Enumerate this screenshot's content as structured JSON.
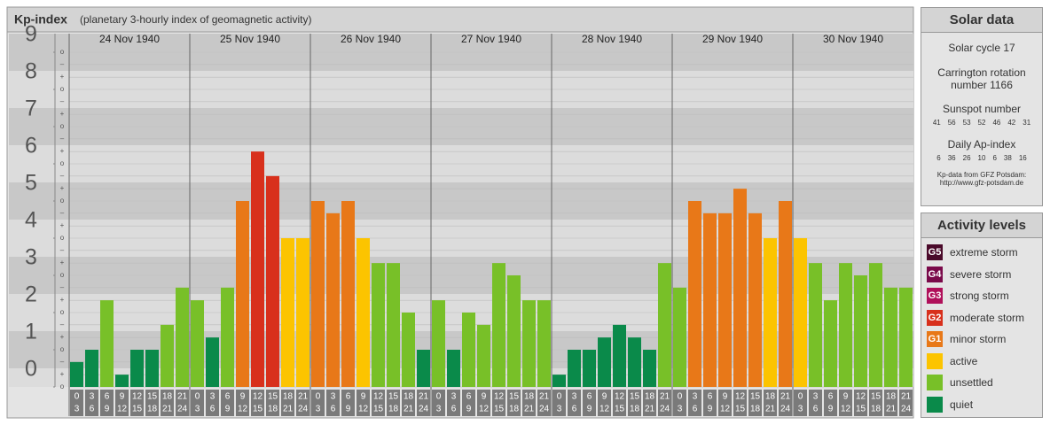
{
  "chart_data": {
    "type": "bar",
    "title": "Kp-index",
    "subtitle": "(planetary 3-hourly index of geomagnetic activity)",
    "ylim": [
      0,
      9.5
    ],
    "yticks": [
      0,
      1,
      2,
      3,
      4,
      5,
      6,
      7,
      8,
      9
    ],
    "yminor": [
      {
        "value": 0,
        "label": "o"
      },
      {
        "value": 0.33,
        "label": "+"
      },
      {
        "value": 0.67,
        "label": "–"
      },
      {
        "value": 1,
        "label": "o"
      },
      {
        "value": 1.33,
        "label": "+"
      },
      {
        "value": 1.67,
        "label": "–"
      },
      {
        "value": 2,
        "label": "o"
      },
      {
        "value": 2.33,
        "label": "+"
      },
      {
        "value": 2.67,
        "label": "–"
      },
      {
        "value": 3,
        "label": "o"
      },
      {
        "value": 3.33,
        "label": "+"
      },
      {
        "value": 3.67,
        "label": "–"
      },
      {
        "value": 4,
        "label": "o"
      },
      {
        "value": 4.33,
        "label": "+"
      },
      {
        "value": 4.67,
        "label": "–"
      },
      {
        "value": 5,
        "label": "o"
      },
      {
        "value": 5.33,
        "label": "+"
      },
      {
        "value": 5.67,
        "label": "–"
      },
      {
        "value": 6,
        "label": "o"
      },
      {
        "value": 6.33,
        "label": "+"
      },
      {
        "value": 6.67,
        "label": "–"
      },
      {
        "value": 7,
        "label": "o"
      },
      {
        "value": 7.33,
        "label": "+"
      },
      {
        "value": 7.67,
        "label": "–"
      },
      {
        "value": 8,
        "label": "o"
      },
      {
        "value": 8.33,
        "label": "+"
      },
      {
        "value": 8.67,
        "label": "–"
      },
      {
        "value": 9,
        "label": "o"
      }
    ],
    "hour_labels": [
      [
        "0",
        "3"
      ],
      [
        "3",
        "6"
      ],
      [
        "6",
        "9"
      ],
      [
        "9",
        "12"
      ],
      [
        "12",
        "15"
      ],
      [
        "15",
        "18"
      ],
      [
        "18",
        "21"
      ],
      [
        "21",
        "24"
      ]
    ],
    "series": [
      {
        "name": "24 Nov 1940",
        "values": [
          0.67,
          1,
          2.33,
          0.33,
          1,
          1,
          1.67,
          2.67
        ],
        "colors": [
          "#0a8a4a",
          "#0a8a4a",
          "#78c028",
          "#0a8a4a",
          "#0a8a4a",
          "#0a8a4a",
          "#78c028",
          "#78c028"
        ]
      },
      {
        "name": "25 Nov 1940",
        "values": [
          2.33,
          1.33,
          2.67,
          5,
          6.33,
          5.67,
          4,
          4
        ],
        "colors": [
          "#78c028",
          "#0a8a4a",
          "#78c028",
          "#e87818",
          "#d8301c",
          "#d8301c",
          "#fcc400",
          "#fcc400"
        ]
      },
      {
        "name": "26 Nov 1940",
        "values": [
          5,
          4.67,
          5,
          4,
          3.33,
          3.33,
          2,
          1
        ],
        "colors": [
          "#e87818",
          "#e87818",
          "#e87818",
          "#fcc400",
          "#78c028",
          "#78c028",
          "#78c028",
          "#0a8a4a"
        ]
      },
      {
        "name": "27 Nov 1940",
        "values": [
          2.33,
          1,
          2,
          1.67,
          3.33,
          3,
          2.33,
          2.33
        ],
        "colors": [
          "#78c028",
          "#0a8a4a",
          "#78c028",
          "#78c028",
          "#78c028",
          "#78c028",
          "#78c028",
          "#78c028"
        ]
      },
      {
        "name": "28 Nov 1940",
        "values": [
          0.33,
          1,
          1,
          1.33,
          1.67,
          1.33,
          1,
          3.33
        ],
        "colors": [
          "#0a8a4a",
          "#0a8a4a",
          "#0a8a4a",
          "#0a8a4a",
          "#0a8a4a",
          "#0a8a4a",
          "#0a8a4a",
          "#78c028"
        ]
      },
      {
        "name": "29 Nov 1940",
        "values": [
          2.67,
          5,
          4.67,
          4.67,
          5.33,
          4.67,
          4,
          5
        ],
        "colors": [
          "#78c028",
          "#e87818",
          "#e87818",
          "#e87818",
          "#e87818",
          "#e87818",
          "#fcc400",
          "#e87818"
        ]
      },
      {
        "name": "30 Nov 1940",
        "values": [
          4,
          3.33,
          2.33,
          3.33,
          3,
          3.33,
          2.67,
          2.67
        ],
        "colors": [
          "#fcc400",
          "#78c028",
          "#78c028",
          "#78c028",
          "#78c028",
          "#78c028",
          "#78c028",
          "#78c028"
        ]
      }
    ]
  },
  "solar_data": {
    "title": "Solar data",
    "solar_cycle": "Solar cycle 17",
    "carrington": [
      "Carrington rotation",
      "number 1166"
    ],
    "sunspot_title": "Sunspot number",
    "sunspot_numbers": [
      41,
      56,
      53,
      52,
      46,
      42,
      31
    ],
    "ap_title": "Daily Ap-index",
    "ap_index": [
      6,
      36,
      26,
      10,
      6,
      38,
      16
    ],
    "source": [
      "Kp-data from GFZ Potsdam:",
      "http://www.gfz-potsdam.de"
    ]
  },
  "activity_levels": {
    "title": "Activity levels",
    "items": [
      {
        "code": "G5",
        "label": "extreme storm",
        "color": "#4a0a2a"
      },
      {
        "code": "G4",
        "label": "severe storm",
        "color": "#7a0a4a"
      },
      {
        "code": "G3",
        "label": "strong storm",
        "color": "#b0105a"
      },
      {
        "code": "G2",
        "label": "moderate storm",
        "color": "#d8301c"
      },
      {
        "code": "G1",
        "label": "minor storm",
        "color": "#e87818"
      },
      {
        "code": null,
        "label": "active",
        "color": "#fcc400"
      },
      {
        "code": null,
        "label": "unsettled",
        "color": "#78c028"
      },
      {
        "code": null,
        "label": "quiet",
        "color": "#0a8a4a"
      }
    ]
  }
}
